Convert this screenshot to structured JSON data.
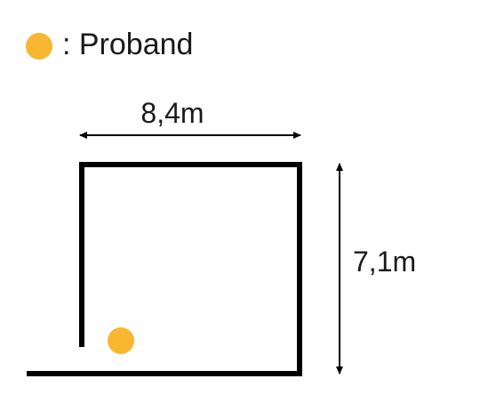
{
  "legend": {
    "marker_color": "#F7B731",
    "label": ": Proband"
  },
  "room": {
    "width_label": "8,4m",
    "height_label": "7,1m",
    "wall_color": "#000000"
  },
  "proband": {
    "color": "#F7B731"
  }
}
